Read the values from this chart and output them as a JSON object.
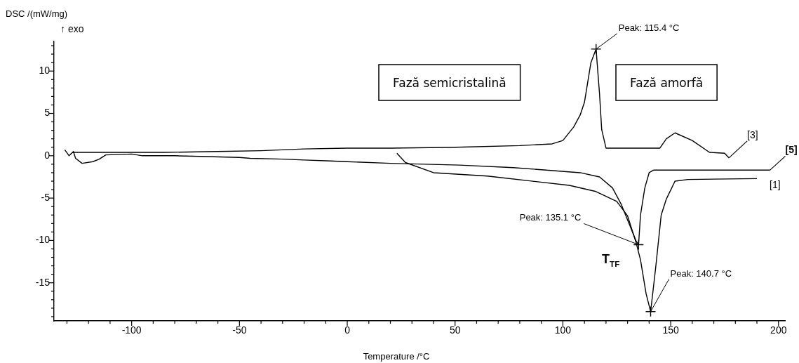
{
  "chart_data": {
    "type": "line",
    "xlabel": "Temperature /°C",
    "ylabel": "DSC /(mW/mg)",
    "xlim": [
      -136,
      203
    ],
    "ylim": [
      -19.5,
      13.5
    ],
    "xticks": [
      {
        "value": -130,
        "label": null
      },
      {
        "value": -120,
        "label": null
      },
      {
        "value": -110,
        "label": null
      },
      -100,
      {
        "value": -90,
        "label": null
      },
      {
        "value": -80,
        "label": null
      },
      {
        "value": -70,
        "label": null
      },
      {
        "value": -60,
        "label": null
      },
      -50,
      {
        "value": -40,
        "label": null
      },
      {
        "value": -30,
        "label": null
      },
      {
        "value": -20,
        "label": null
      },
      {
        "value": -10,
        "label": null
      },
      0,
      {
        "value": 10,
        "label": null
      },
      {
        "value": 20,
        "label": null
      },
      {
        "value": 30,
        "label": null
      },
      {
        "value": 40,
        "label": null
      },
      50,
      {
        "value": 60,
        "label": null
      },
      {
        "value": 70,
        "label": null
      },
      {
        "value": 80,
        "label": null
      },
      {
        "value": 90,
        "label": null
      },
      100,
      {
        "value": 110,
        "label": null
      },
      {
        "value": 120,
        "label": null
      },
      {
        "value": 130,
        "label": null
      },
      {
        "value": 140,
        "label": null
      },
      150,
      {
        "value": 160,
        "label": null
      },
      {
        "value": 170,
        "label": null
      },
      {
        "value": 180,
        "label": null
      },
      {
        "value": 190,
        "label": null
      },
      200
    ],
    "yticks": [
      {
        "value": -19,
        "label": null
      },
      {
        "value": -18,
        "label": null
      },
      {
        "value": -17,
        "label": null
      },
      {
        "value": -16,
        "label": null
      },
      -15,
      {
        "value": -14,
        "label": null
      },
      {
        "value": -13,
        "label": null
      },
      {
        "value": -12,
        "label": null
      },
      {
        "value": -11,
        "label": null
      },
      -10,
      {
        "value": -9,
        "label": null
      },
      {
        "value": -8,
        "label": null
      },
      {
        "value": -7,
        "label": null
      },
      {
        "value": -6,
        "label": null
      },
      -5,
      {
        "value": -4,
        "label": null
      },
      {
        "value": -3,
        "label": null
      },
      {
        "value": -2,
        "label": null
      },
      {
        "value": -1,
        "label": null
      },
      0,
      {
        "value": 1,
        "label": null
      },
      {
        "value": 2,
        "label": null
      },
      {
        "value": 3,
        "label": null
      },
      {
        "value": 4,
        "label": null
      },
      5,
      {
        "value": 6,
        "label": null
      },
      {
        "value": 7,
        "label": null
      },
      {
        "value": 8,
        "label": null
      },
      {
        "value": 9,
        "label": null
      },
      10,
      {
        "value": 11,
        "label": null
      },
      {
        "value": 12,
        "label": null
      },
      {
        "value": 13,
        "label": null
      }
    ],
    "grid": false,
    "legend": false,
    "marker": "none",
    "line_style": "solid",
    "series": [
      {
        "name": "[3]",
        "color": "#000000",
        "x": [
          -127,
          -85,
          -60,
          -40,
          -20,
          0,
          20,
          50,
          80,
          95,
          100,
          105,
          108,
          110,
          113,
          115.4,
          117,
          118,
          120,
          145,
          148,
          152,
          160,
          168,
          175,
          177
        ],
        "values": [
          0.4,
          0.4,
          0.5,
          0.6,
          0.8,
          0.9,
          0.9,
          1.0,
          1.2,
          1.4,
          1.8,
          3.4,
          4.8,
          6.3,
          11,
          12.6,
          7.3,
          3.1,
          0.9,
          0.9,
          2.0,
          2.7,
          1.8,
          0.4,
          0.3,
          -0.25
        ]
      },
      {
        "name": "[5]",
        "color": "#000000",
        "x": [
          -131,
          -129,
          -127,
          -126,
          -123,
          -118,
          -115,
          -112,
          -100,
          -95,
          -80,
          -65,
          -50,
          -45,
          -30,
          -20,
          -10,
          0,
          20,
          52,
          77,
          108,
          117,
          123,
          127,
          131,
          134,
          135.1,
          136,
          138,
          140,
          142,
          196
        ],
        "values": [
          0.7,
          0.0,
          0.5,
          -0.3,
          -0.9,
          -0.7,
          -0.4,
          0.1,
          0.2,
          0.0,
          0.0,
          -0.1,
          -0.2,
          -0.3,
          -0.4,
          -0.5,
          -0.6,
          -0.7,
          -0.9,
          -1.1,
          -1.4,
          -2.0,
          -2.5,
          -3.8,
          -5.7,
          -8.2,
          -10.1,
          -10.5,
          -7.0,
          -3.8,
          -2.0,
          -1.7,
          -1.7
        ]
      },
      {
        "name": "[1]",
        "color": "#000000",
        "x": [
          23,
          27,
          40,
          65,
          103,
          115,
          125,
          130,
          134,
          136,
          138.6,
          140.7,
          143,
          145.6,
          148,
          152,
          158,
          190
        ],
        "values": [
          0.3,
          -0.8,
          -2.0,
          -2.4,
          -3.5,
          -4.2,
          -5.4,
          -7.1,
          -10.3,
          -12.3,
          -16.3,
          -18.4,
          -13.3,
          -7.0,
          -5.1,
          -3.0,
          -2.8,
          -2.7
        ]
      }
    ],
    "annotations": [
      "↑ exo",
      "Fază semicristalină",
      "Fază amorfă",
      "T$_{TF}$",
      {
        "text": "Peak: 115.4 °C",
        "x": 115.4,
        "y": 12.6
      },
      {
        "text": "Peak: 135.1 °C",
        "x": 135.1,
        "y": -10.5
      },
      {
        "text": "Peak: 140.7 °C",
        "x": 140.7,
        "y": -18.4
      }
    ]
  }
}
